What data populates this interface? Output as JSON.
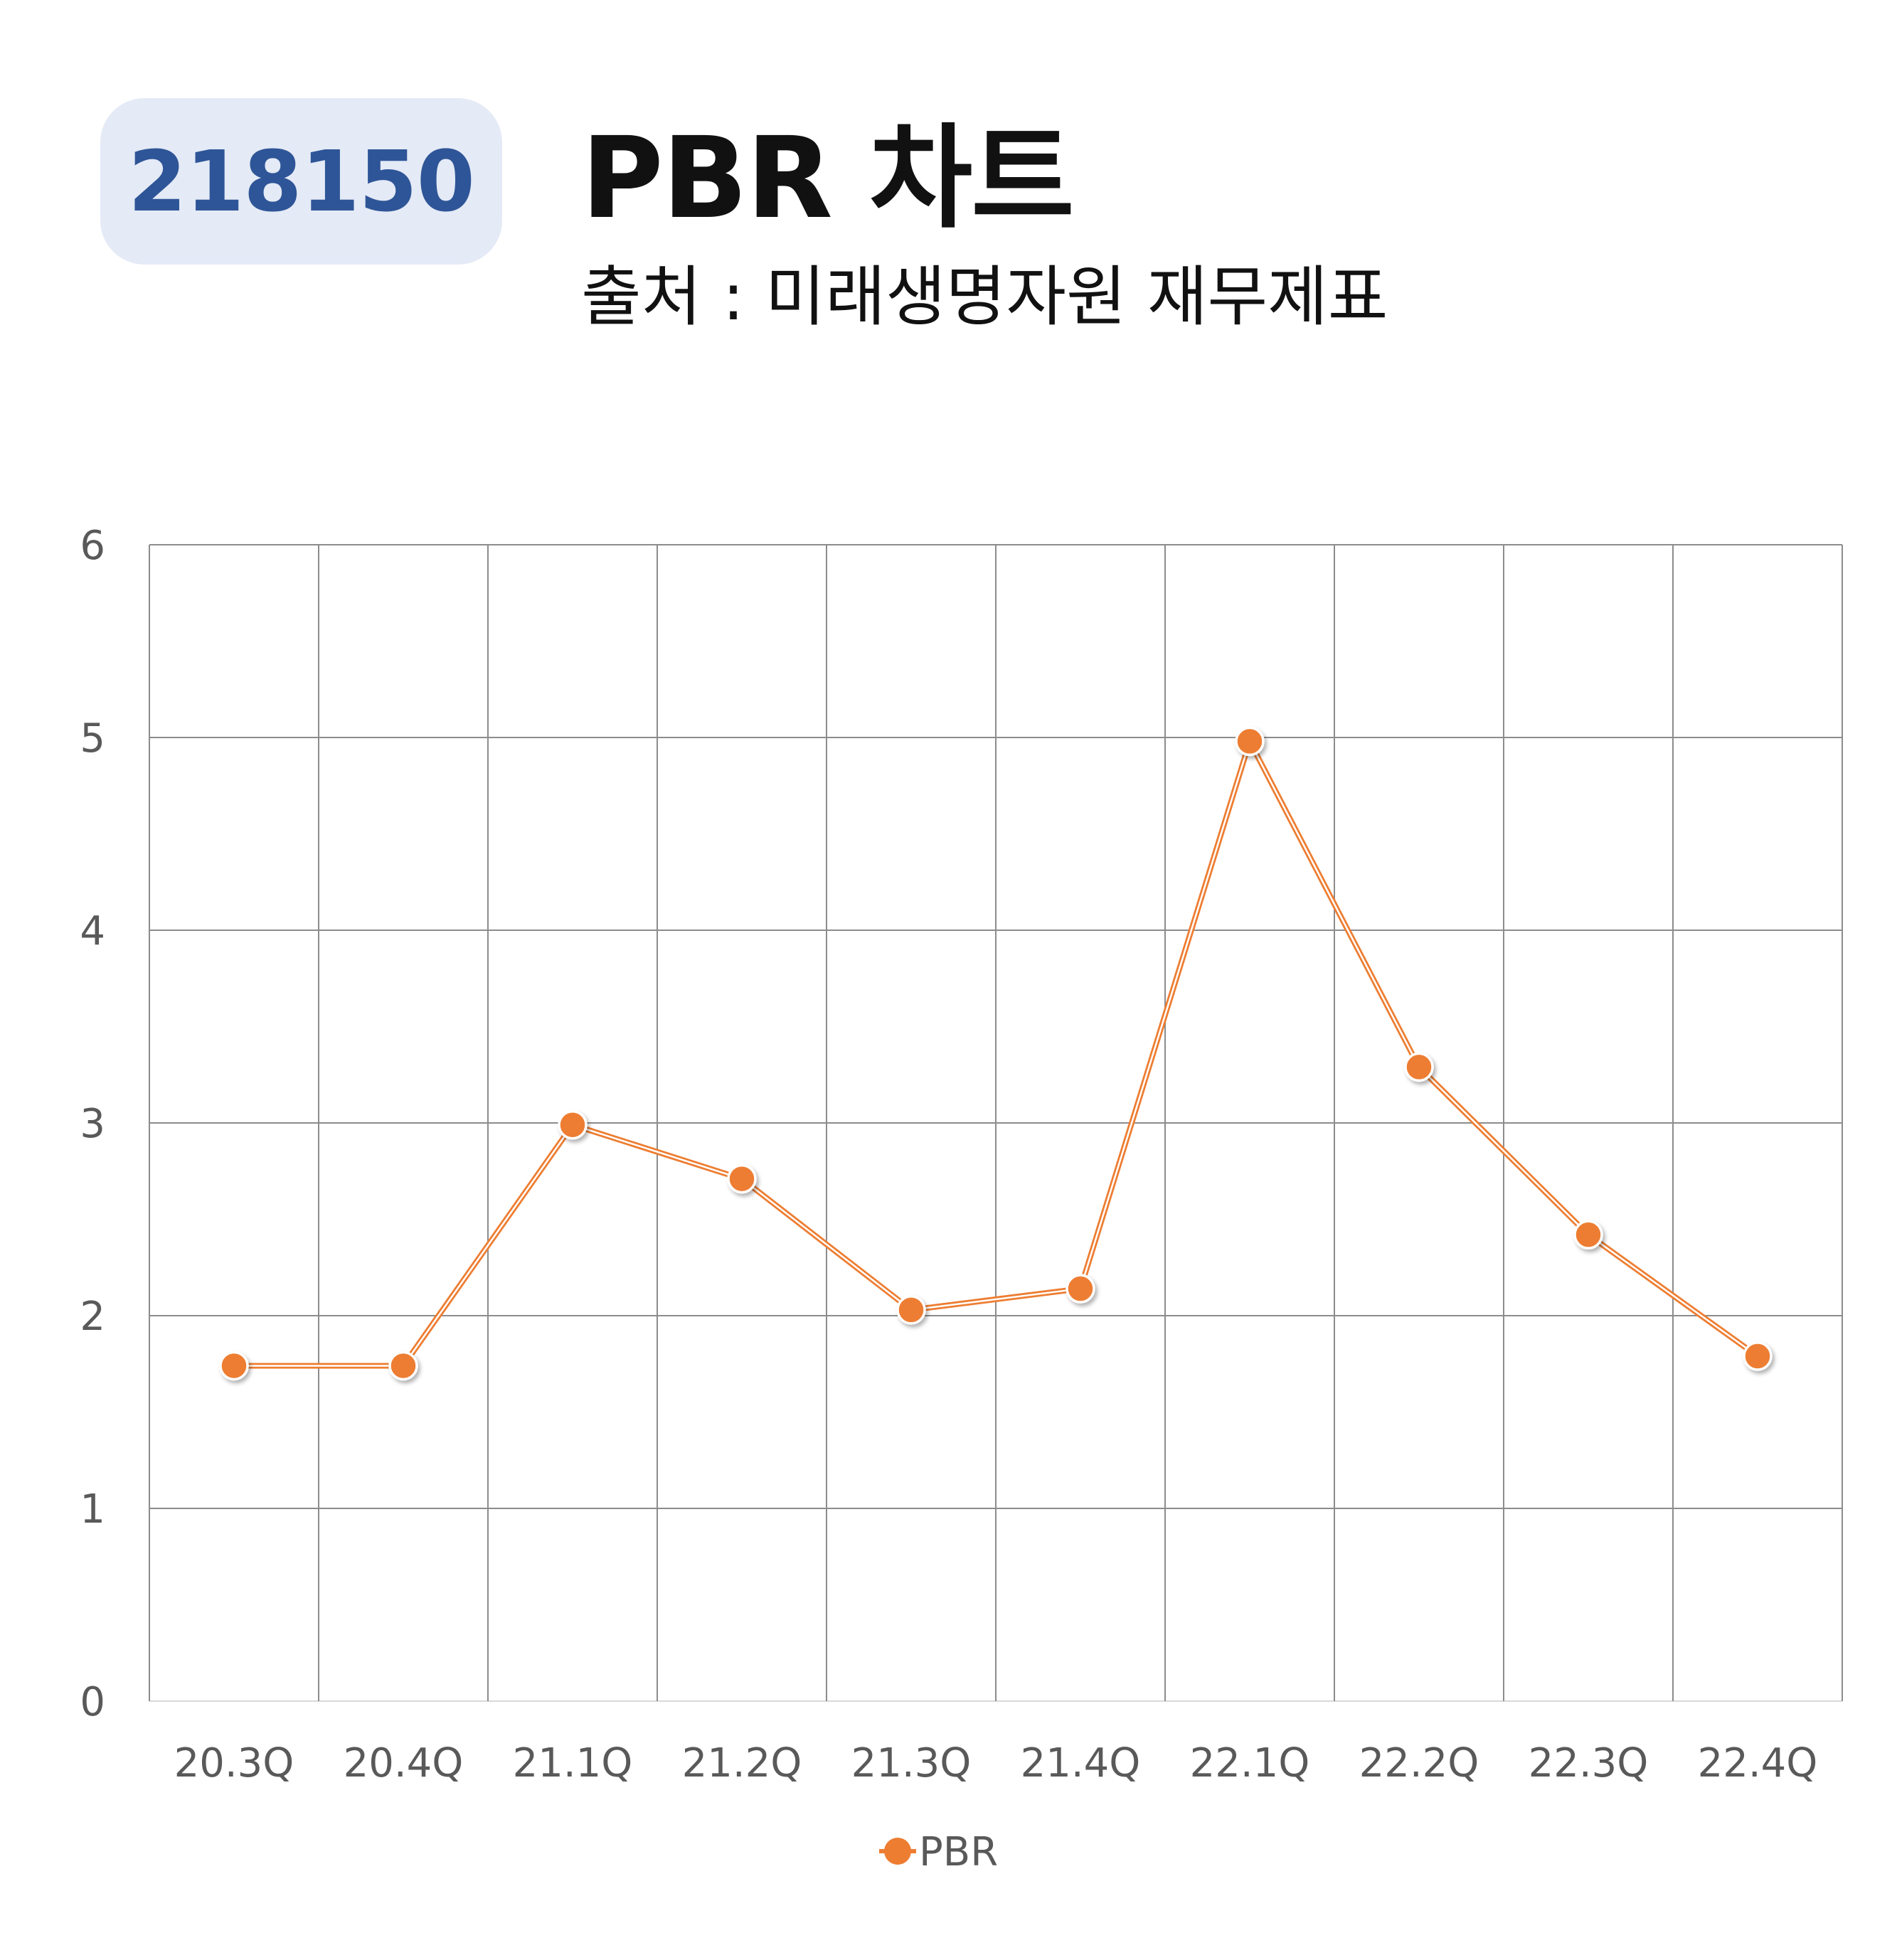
{
  "header": {
    "code": "218150",
    "title": "PBR 차트",
    "subtitle": "출처 : 미래생명자원 재무제표"
  },
  "colors": {
    "badge_bg": "#e4eaf6",
    "badge_text": "#2e5597",
    "series": "#ed7d31",
    "grid": "#8c8c8c"
  },
  "chart_data": {
    "type": "line",
    "categories": [
      "20.3Q",
      "20.4Q",
      "21.1Q",
      "21.2Q",
      "21.3Q",
      "21.4Q",
      "22.1Q",
      "22.2Q",
      "22.3Q",
      "22.4Q"
    ],
    "series": [
      {
        "name": "PBR",
        "values": [
          1.74,
          1.74,
          2.99,
          2.71,
          2.03,
          2.14,
          4.98,
          3.29,
          2.42,
          1.79
        ]
      }
    ],
    "y_ticks": [
      "0",
      "1",
      "2",
      "3",
      "4",
      "5",
      "6"
    ],
    "ylim": [
      0,
      6
    ],
    "grid": true,
    "legend": "bottom-center",
    "title": "",
    "xlabel": "",
    "ylabel": ""
  }
}
